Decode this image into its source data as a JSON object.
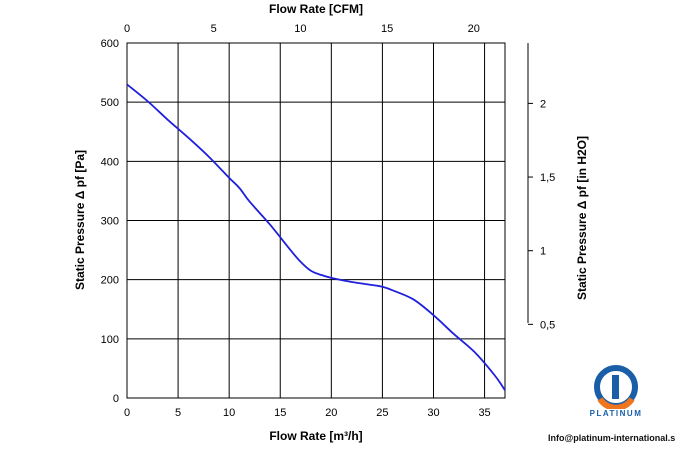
{
  "chart_data": {
    "type": "line",
    "xlabel": "Flow Rate [m³/h]",
    "ylabel": "Static Pressure Δ pf [Pa]",
    "top_xlabel": "Flow Rate [CFM]",
    "right_ylabel": "Static Pressure Δ pf [in H2O]",
    "xlim": [
      0,
      37
    ],
    "ylim": [
      0,
      600
    ],
    "x_ticks": [
      "0",
      "5",
      "10",
      "15",
      "20",
      "25",
      "30",
      "35"
    ],
    "y_ticks": [
      "0",
      "100",
      "200",
      "300",
      "400",
      "500",
      "600"
    ],
    "top_xlim": [
      0,
      21.8
    ],
    "top_x_ticks": [
      "0",
      "5",
      "10",
      "15",
      "20"
    ],
    "right_ylim": [
      0,
      2.41
    ],
    "right_y_ticks": [
      "0,5",
      "1",
      "1,5",
      "2"
    ],
    "grid": true,
    "line_color": "#1f1fdc",
    "series": [
      {
        "x": [
          0,
          2,
          4,
          6,
          8,
          10,
          11,
          12,
          14,
          16,
          17,
          18,
          19,
          20,
          22,
          24,
          25,
          26,
          28,
          30,
          32,
          34,
          36,
          37
        ],
        "y": [
          530,
          502,
          470,
          440,
          408,
          372,
          355,
          332,
          293,
          250,
          230,
          215,
          208,
          203,
          196,
          191,
          188,
          182,
          167,
          140,
          108,
          78,
          38,
          13
        ]
      }
    ]
  },
  "branding": {
    "logo_text": "PLATINUM",
    "contact": "Info@platinum-international.store",
    "logo_colors": [
      "#1a5ea8",
      "#f0731e"
    ]
  }
}
